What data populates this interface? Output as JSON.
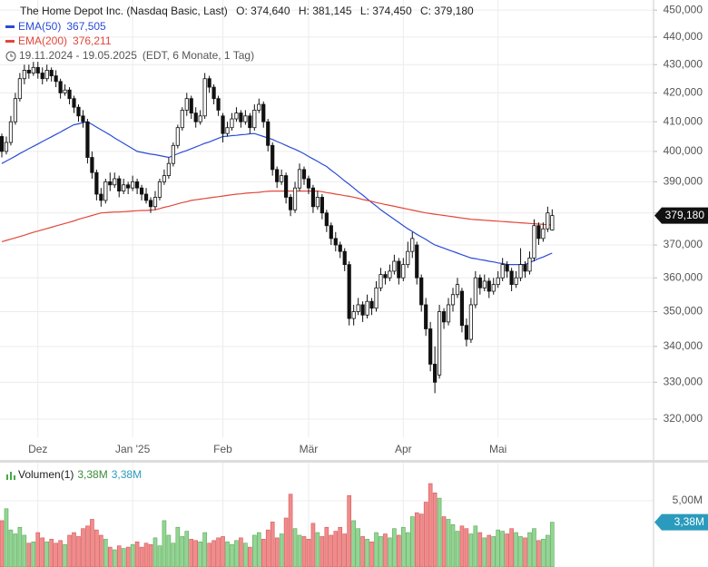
{
  "chart_data": {
    "type": "candlestick",
    "title": "The Home Depot Inc. (Nasdaq Basic, Last)",
    "ohlc_labels": [
      "O: 374,640",
      "H: 381,145",
      "L: 374,450",
      "C: 379,180"
    ],
    "date_range": "19.11.2024 - 19.05.2025",
    "range_note": "(EDT, 6 Monate, 1 Tag)",
    "log_scale": true,
    "grid": true,
    "ylim": [
      315.2,
      453.8
    ],
    "yticks": [
      {
        "value": 320,
        "label": "320,000"
      },
      {
        "value": 330,
        "label": "330,000"
      },
      {
        "value": 340,
        "label": "340,000"
      },
      {
        "value": 350,
        "label": "350,000"
      },
      {
        "value": 360,
        "label": "360,000"
      },
      {
        "value": 370,
        "label": "370,000"
      },
      {
        "value": 380,
        "label": "380,000"
      },
      {
        "value": 390,
        "label": "390,000"
      },
      {
        "value": 400,
        "label": "400,000"
      },
      {
        "value": 410,
        "label": "410,000"
      },
      {
        "value": 420,
        "label": "420,000"
      },
      {
        "value": 430,
        "label": "430,000"
      },
      {
        "value": 440,
        "label": "440,000"
      },
      {
        "value": 450,
        "label": "450,000"
      }
    ],
    "xticks": [
      {
        "value": 8,
        "label": "Dez"
      },
      {
        "value": 29,
        "label": "Jan '25"
      },
      {
        "value": 49,
        "label": "Feb"
      },
      {
        "value": 68,
        "label": "Mär"
      },
      {
        "value": 89,
        "label": "Apr"
      },
      {
        "value": 110,
        "label": "Mai"
      }
    ],
    "last_price": {
      "value": 379.18,
      "label": "379,180"
    },
    "candles": [
      [
        405,
        406,
        398,
        400
      ],
      [
        400,
        405,
        399,
        403
      ],
      [
        403,
        412,
        402,
        410
      ],
      [
        410,
        420,
        409,
        418
      ],
      [
        418,
        427,
        417,
        425
      ],
      [
        425,
        430,
        423,
        428
      ],
      [
        428,
        430,
        425,
        427
      ],
      [
        427,
        431,
        426,
        429
      ],
      [
        429,
        431,
        425,
        427
      ],
      [
        427,
        429,
        423,
        425
      ],
      [
        425,
        430,
        424,
        428
      ],
      [
        428,
        429,
        424,
        426
      ],
      [
        426,
        428,
        422,
        424
      ],
      [
        424,
        425,
        418,
        420
      ],
      [
        420,
        423,
        419,
        421
      ],
      [
        421,
        422,
        416,
        418
      ],
      [
        418,
        419,
        413,
        415
      ],
      [
        415,
        416,
        410,
        412
      ],
      [
        412,
        414,
        408,
        410
      ],
      [
        410,
        411,
        396,
        398
      ],
      [
        398,
        400,
        391,
        393
      ],
      [
        393,
        394,
        384,
        386
      ],
      [
        386,
        388,
        382,
        384
      ],
      [
        384,
        391,
        383,
        390
      ],
      [
        390,
        393,
        387,
        389
      ],
      [
        389,
        393,
        388,
        391
      ],
      [
        391,
        392,
        385,
        387
      ],
      [
        387,
        391,
        386,
        389
      ],
      [
        389,
        390,
        386,
        388
      ],
      [
        388,
        392,
        387,
        390
      ],
      [
        390,
        391,
        386,
        388
      ],
      [
        388,
        389,
        384,
        386
      ],
      [
        386,
        388,
        383,
        384
      ],
      [
        384,
        385,
        380,
        382
      ],
      [
        382,
        387,
        381,
        385
      ],
      [
        385,
        391,
        384,
        390
      ],
      [
        390,
        394,
        389,
        392
      ],
      [
        392,
        398,
        391,
        396
      ],
      [
        396,
        403,
        395,
        402
      ],
      [
        402,
        409,
        401,
        408
      ],
      [
        408,
        415,
        407,
        414
      ],
      [
        414,
        420,
        412,
        418
      ],
      [
        418,
        419,
        411,
        413
      ],
      [
        413,
        415,
        408,
        410
      ],
      [
        410,
        414,
        409,
        412
      ],
      [
        412,
        427,
        411,
        425
      ],
      [
        425,
        426,
        420,
        422
      ],
      [
        422,
        423,
        416,
        418
      ],
      [
        418,
        419,
        412,
        414
      ],
      [
        412,
        413,
        403,
        406
      ],
      [
        406,
        410,
        405,
        408
      ],
      [
        408,
        413,
        407,
        411
      ],
      [
        411,
        415,
        410,
        413
      ],
      [
        413,
        414,
        408,
        410
      ],
      [
        410,
        414,
        409,
        412
      ],
      [
        412,
        413,
        406,
        408
      ],
      [
        408,
        416,
        407,
        414
      ],
      [
        414,
        418,
        413,
        416
      ],
      [
        416,
        417,
        408,
        410
      ],
      [
        410,
        411,
        400,
        402
      ],
      [
        402,
        403,
        392,
        394
      ],
      [
        394,
        395,
        388,
        390
      ],
      [
        390,
        394,
        389,
        392
      ],
      [
        392,
        393,
        383,
        385
      ],
      [
        385,
        386,
        379,
        381
      ],
      [
        381,
        390,
        380,
        388
      ],
      [
        388,
        396,
        387,
        394
      ],
      [
        394,
        395,
        389,
        391
      ],
      [
        391,
        392,
        386,
        388
      ],
      [
        388,
        389,
        380,
        382
      ],
      [
        382,
        387,
        381,
        385
      ],
      [
        385,
        386,
        378,
        380
      ],
      [
        380,
        381,
        374,
        376
      ],
      [
        376,
        377,
        370,
        372
      ],
      [
        372,
        374,
        368,
        370
      ],
      [
        370,
        371,
        366,
        368
      ],
      [
        368,
        369,
        362,
        364
      ],
      [
        364,
        365,
        346,
        348
      ],
      [
        348,
        352,
        346,
        350
      ],
      [
        350,
        354,
        349,
        352
      ],
      [
        352,
        353,
        347,
        349
      ],
      [
        349,
        355,
        348,
        353
      ],
      [
        353,
        354,
        349,
        351
      ],
      [
        351,
        359,
        350,
        357
      ],
      [
        357,
        363,
        356,
        361
      ],
      [
        361,
        362,
        358,
        360
      ],
      [
        360,
        364,
        359,
        362
      ],
      [
        362,
        367,
        361,
        365
      ],
      [
        365,
        366,
        358,
        360
      ],
      [
        360,
        366,
        359,
        364
      ],
      [
        364,
        371,
        363,
        368
      ],
      [
        368,
        374,
        366,
        372
      ],
      [
        370,
        371,
        358,
        360
      ],
      [
        360,
        361,
        350,
        352
      ],
      [
        352,
        354,
        343,
        345
      ],
      [
        345,
        347,
        333,
        335
      ],
      [
        335,
        340,
        327,
        330
      ],
      [
        332,
        352,
        331,
        350
      ],
      [
        350,
        351,
        345,
        347
      ],
      [
        347,
        354,
        346,
        352
      ],
      [
        352,
        357,
        350,
        355
      ],
      [
        355,
        360,
        354,
        358
      ],
      [
        356,
        357,
        344,
        346
      ],
      [
        346,
        348,
        340,
        342
      ],
      [
        342,
        354,
        341,
        352
      ],
      [
        352,
        362,
        351,
        360
      ],
      [
        360,
        361,
        355,
        357
      ],
      [
        357,
        361,
        356,
        359
      ],
      [
        359,
        360,
        354,
        356
      ],
      [
        356,
        360,
        355,
        358
      ],
      [
        358,
        362,
        357,
        360
      ],
      [
        360,
        366,
        359,
        364
      ],
      [
        364,
        365,
        360,
        362
      ],
      [
        362,
        363,
        356,
        358
      ],
      [
        358,
        362,
        357,
        360
      ],
      [
        360,
        369,
        359,
        364
      ],
      [
        364,
        365,
        360,
        362
      ],
      [
        362,
        368,
        361,
        366
      ],
      [
        366,
        378,
        365,
        376
      ],
      [
        376,
        377,
        370,
        372
      ],
      [
        372,
        377,
        371,
        375
      ],
      [
        375,
        382,
        374,
        380
      ],
      [
        374.64,
        381.145,
        374.45,
        379.18
      ]
    ],
    "candle_colors": {
      "up": "#ffffff",
      "down": "#111111",
      "outline": "#111111"
    },
    "series": [
      {
        "name": "EMA(50)",
        "color": "#2a4bd7",
        "last_value_label": "367,505",
        "values": [
          396,
          396.8,
          397.6,
          398.4,
          399.3,
          400.1,
          400.9,
          401.7,
          402.5,
          403.3,
          404.1,
          404.9,
          405.7,
          406.5,
          407.4,
          408.2,
          409,
          409.3,
          409.7,
          410,
          409.1,
          408.2,
          407.3,
          406.4,
          405.5,
          404.5,
          403.6,
          402.7,
          401.8,
          400.9,
          400,
          399.7,
          399.4,
          399.1,
          398.9,
          398.6,
          398.3,
          398,
          398.6,
          399.2,
          399.8,
          400.3,
          400.9,
          401.5,
          402.1,
          402.7,
          403.2,
          403.8,
          404.4,
          405,
          405.1,
          405.3,
          405.4,
          405.6,
          405.7,
          405.9,
          406,
          405.5,
          405,
          404.5,
          404,
          403.3,
          402.7,
          402,
          401.3,
          400.7,
          400,
          399.2,
          398.3,
          397.5,
          396.7,
          395.8,
          395,
          393.8,
          392.7,
          391.5,
          390.3,
          389.2,
          388,
          386.8,
          385.7,
          384.5,
          383.3,
          382.2,
          381,
          380,
          379,
          378,
          377,
          376,
          375,
          374.2,
          373.3,
          372.5,
          371.7,
          370.8,
          370,
          369.5,
          369,
          368.5,
          368,
          367.5,
          367,
          366.5,
          366,
          365.8,
          365.5,
          365.3,
          365,
          364.8,
          364.5,
          364.3,
          364,
          364,
          364,
          364,
          364,
          364.6,
          365.2,
          365.8,
          366.3,
          366.9,
          367.505
        ]
      },
      {
        "name": "EMA(200)",
        "color": "#e2473b",
        "last_value_label": "376,211",
        "values": [
          371,
          371.4,
          371.8,
          372.2,
          372.6,
          373,
          373.5,
          373.9,
          374.3,
          374.7,
          375.1,
          375.5,
          375.9,
          376.3,
          376.7,
          377.1,
          377.5,
          378,
          378.4,
          378.8,
          379.2,
          379.6,
          380,
          380.1,
          380.2,
          380.3,
          380.3,
          380.4,
          380.5,
          380.6,
          380.7,
          380.8,
          380.8,
          380.9,
          381,
          381.4,
          381.8,
          382.1,
          382.5,
          382.9,
          383.3,
          383.6,
          384,
          384.2,
          384.4,
          384.6,
          384.8,
          385,
          385.2,
          385.4,
          385.6,
          385.8,
          386,
          386.1,
          386.3,
          386.4,
          386.5,
          386.6,
          386.8,
          386.9,
          387,
          387,
          387,
          387,
          387,
          387,
          387,
          387,
          387,
          387,
          387,
          386.8,
          386.5,
          386.3,
          386,
          385.8,
          385.5,
          385.3,
          385,
          384.7,
          384.3,
          384,
          383.7,
          383.3,
          383,
          382.7,
          382.4,
          382.1,
          381.8,
          381.5,
          381.2,
          380.9,
          380.6,
          380.3,
          380,
          379.8,
          379.6,
          379.4,
          379.2,
          379,
          378.8,
          378.6,
          378.4,
          378.2,
          378,
          377.9,
          377.8,
          377.7,
          377.6,
          377.5,
          377.4,
          377.3,
          377.2,
          377.1,
          377,
          376.9,
          376.8,
          376.7,
          376.6,
          376.5,
          376.4,
          376.3,
          376.211
        ]
      }
    ],
    "volume": {
      "name": "Volumen(1)",
      "legend_values": [
        "3,38M",
        "3,38M"
      ],
      "ylim": [
        0,
        7.88
      ],
      "yticks": [
        {
          "value": 5,
          "label": "5,00M"
        }
      ],
      "last": {
        "value": 3.38,
        "label": "3,38M"
      },
      "up_color": "#93d593",
      "down_color": "#f28b8b",
      "values": [
        3.5,
        4.4,
        2.8,
        2.5,
        3.0,
        2.4,
        1.8,
        1.9,
        2.6,
        2.2,
        1.9,
        2.1,
        1.8,
        2.0,
        1.7,
        2.4,
        2.6,
        2.3,
        2.9,
        3.1,
        3.6,
        2.8,
        2.4,
        2.1,
        1.5,
        1.3,
        1.6,
        1.4,
        1.5,
        1.7,
        1.9,
        1.5,
        1.8,
        1.7,
        2.2,
        1.6,
        3.5,
        2.4,
        1.8,
        3.0,
        2.3,
        2.7,
        2.1,
        2.0,
        1.9,
        2.6,
        1.8,
        2.0,
        2.2,
        2.3,
        1.9,
        1.7,
        2.0,
        2.2,
        1.8,
        1.5,
        2.4,
        2.6,
        2.1,
        2.8,
        3.4,
        2.2,
        2.5,
        3.7,
        5.5,
        2.9,
        2.4,
        2.3,
        2.1,
        3.3,
        2.6,
        2.3,
        3.0,
        2.4,
        2.7,
        3.0,
        2.5,
        5.4,
        3.5,
        2.9,
        2.3,
        2.1,
        1.9,
        2.6,
        2.3,
        2.5,
        2.2,
        2.9,
        2.4,
        3.0,
        2.6,
        3.8,
        4.1,
        4.0,
        4.9,
        6.3,
        5.6,
        5.2,
        3.8,
        3.6,
        3.2,
        2.7,
        3.1,
        2.9,
        2.5,
        3.1,
        2.6,
        2.2,
        2.4,
        2.3,
        2.8,
        2.7,
        2.5,
        2.9,
        2.6,
        2.3,
        2.2,
        2.6,
        2.9,
        2.0,
        2.1,
        2.4,
        3.38
      ]
    }
  }
}
